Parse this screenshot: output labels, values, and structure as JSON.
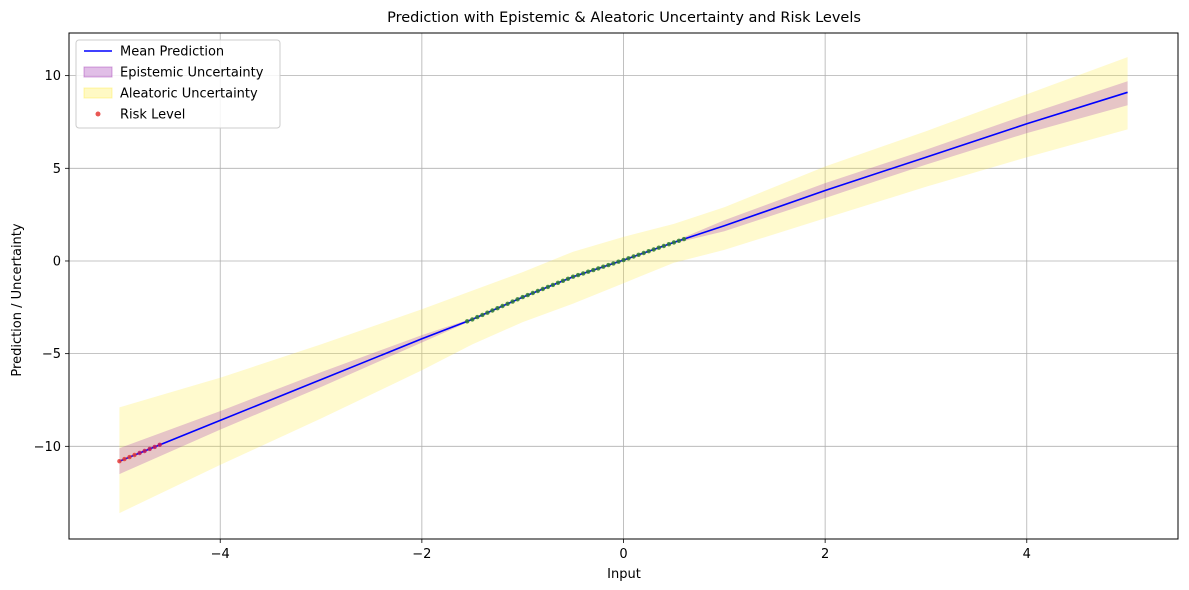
{
  "chart_data": {
    "type": "line",
    "title": "Prediction with Epistemic & Aleatoric Uncertainty and Risk Levels",
    "xlabel": "Input",
    "ylabel": "Prediction / Uncertainty",
    "xlim": [
      -5.5,
      5.5
    ],
    "ylim": [
      -15,
      12.3
    ],
    "xticks": [
      -4,
      -2,
      0,
      2,
      4
    ],
    "yticks": [
      -10,
      -5,
      0,
      5,
      10
    ],
    "xtick_labels": [
      "−4",
      "−2",
      "0",
      "2",
      "4"
    ],
    "ytick_labels": [
      "−10",
      "−5",
      "0",
      "5",
      "10"
    ],
    "grid": true,
    "legend_position": "top-left",
    "series": [
      {
        "name": "Mean Prediction",
        "kind": "line",
        "color": "#0000ff",
        "x": [
          -5,
          -4,
          -3,
          -2,
          -1.5,
          -1,
          -0.5,
          0,
          0.5,
          1,
          2,
          3,
          4,
          5
        ],
        "y": [
          -10.8,
          -8.6,
          -6.4,
          -4.2,
          -3.15,
          -1.95,
          -0.85,
          0.05,
          1.0,
          1.9,
          3.8,
          5.6,
          7.4,
          9.1
        ]
      },
      {
        "name": "Epistemic Uncertainty",
        "kind": "band",
        "color": "#9c27b0",
        "x": [
          -5,
          -4,
          -3,
          -2,
          -1.5,
          -1,
          -0.5,
          0,
          0.5,
          1,
          2,
          3,
          4,
          5
        ],
        "lower": [
          -11.5,
          -9.1,
          -6.8,
          -4.4,
          -3.2,
          -2.0,
          -0.9,
          0.0,
          0.95,
          1.6,
          3.4,
          5.2,
          6.9,
          8.4
        ],
        "upper": [
          -10.1,
          -8.1,
          -6.0,
          -4.0,
          -3.1,
          -1.9,
          -0.8,
          0.1,
          1.05,
          2.2,
          4.2,
          6.0,
          7.9,
          9.7
        ]
      },
      {
        "name": "Aleatoric Uncertainty",
        "kind": "band",
        "color": "#ffeb3b",
        "x": [
          -5,
          -4,
          -3,
          -2,
          -1.5,
          -1,
          -0.5,
          0,
          0.5,
          1,
          2,
          3,
          4,
          5
        ],
        "lower": [
          -13.6,
          -11.0,
          -8.5,
          -5.9,
          -4.5,
          -3.3,
          -2.3,
          -1.2,
          -0.1,
          0.6,
          2.3,
          4.0,
          5.6,
          7.1
        ],
        "upper": [
          -7.9,
          -6.3,
          -4.5,
          -2.6,
          -1.6,
          -0.6,
          0.5,
          1.3,
          2.0,
          2.9,
          5.1,
          7.0,
          9.0,
          11.0
        ]
      },
      {
        "name": "Risk Level",
        "kind": "scatter",
        "color": "#e53935",
        "x": [
          -5.0,
          -4.95,
          -4.9,
          -4.85,
          -4.8,
          -4.75,
          -4.7,
          -4.65,
          -4.6,
          -1.55,
          -1.5,
          -1.45,
          -1.4,
          -1.35,
          -1.3,
          -1.25,
          -1.2,
          -1.15,
          -1.1,
          -1.05,
          -1.0,
          -0.95,
          -0.9,
          -0.85,
          -0.8,
          -0.75,
          -0.7,
          -0.65,
          -0.6,
          -0.55,
          -0.5,
          -0.45,
          -0.4,
          -0.35,
          -0.3,
          -0.25,
          -0.2,
          -0.15,
          -0.1,
          -0.05,
          0.0,
          0.05,
          0.1,
          0.15,
          0.2,
          0.25,
          0.3,
          0.35,
          0.4,
          0.45,
          0.5,
          0.55,
          0.6
        ],
        "point_colors": [
          "#e53935",
          "#e53935",
          "#e53935",
          "#e53935",
          "#c2185b",
          "#c2185b",
          "#c2185b",
          "#c2185b",
          "#c2185b",
          "#2e7d32",
          "#2e7d32",
          "#2e7d32",
          "#2e7d32",
          "#2e7d32",
          "#2e7d32",
          "#2e7d32",
          "#2e7d32",
          "#2e7d32",
          "#2e7d32",
          "#2e7d32",
          "#2e7d32",
          "#2e7d32",
          "#2e7d32",
          "#2e7d32",
          "#2e7d32",
          "#2e7d32",
          "#2e7d32",
          "#2e7d32",
          "#2e7d32",
          "#2e7d32",
          "#2e7d32",
          "#2e7d32",
          "#2e7d32",
          "#2e7d32",
          "#2e7d32",
          "#2e7d32",
          "#2e7d32",
          "#2e7d32",
          "#2e7d32",
          "#2e7d32",
          "#2e7d32",
          "#2e7d32",
          "#2e7d32",
          "#2e7d32",
          "#2e7d32",
          "#2e7d32",
          "#2e7d32",
          "#2e7d32",
          "#2e7d32",
          "#2e7d32",
          "#2e7d32",
          "#2e7d32",
          "#2e7d32"
        ]
      }
    ]
  }
}
